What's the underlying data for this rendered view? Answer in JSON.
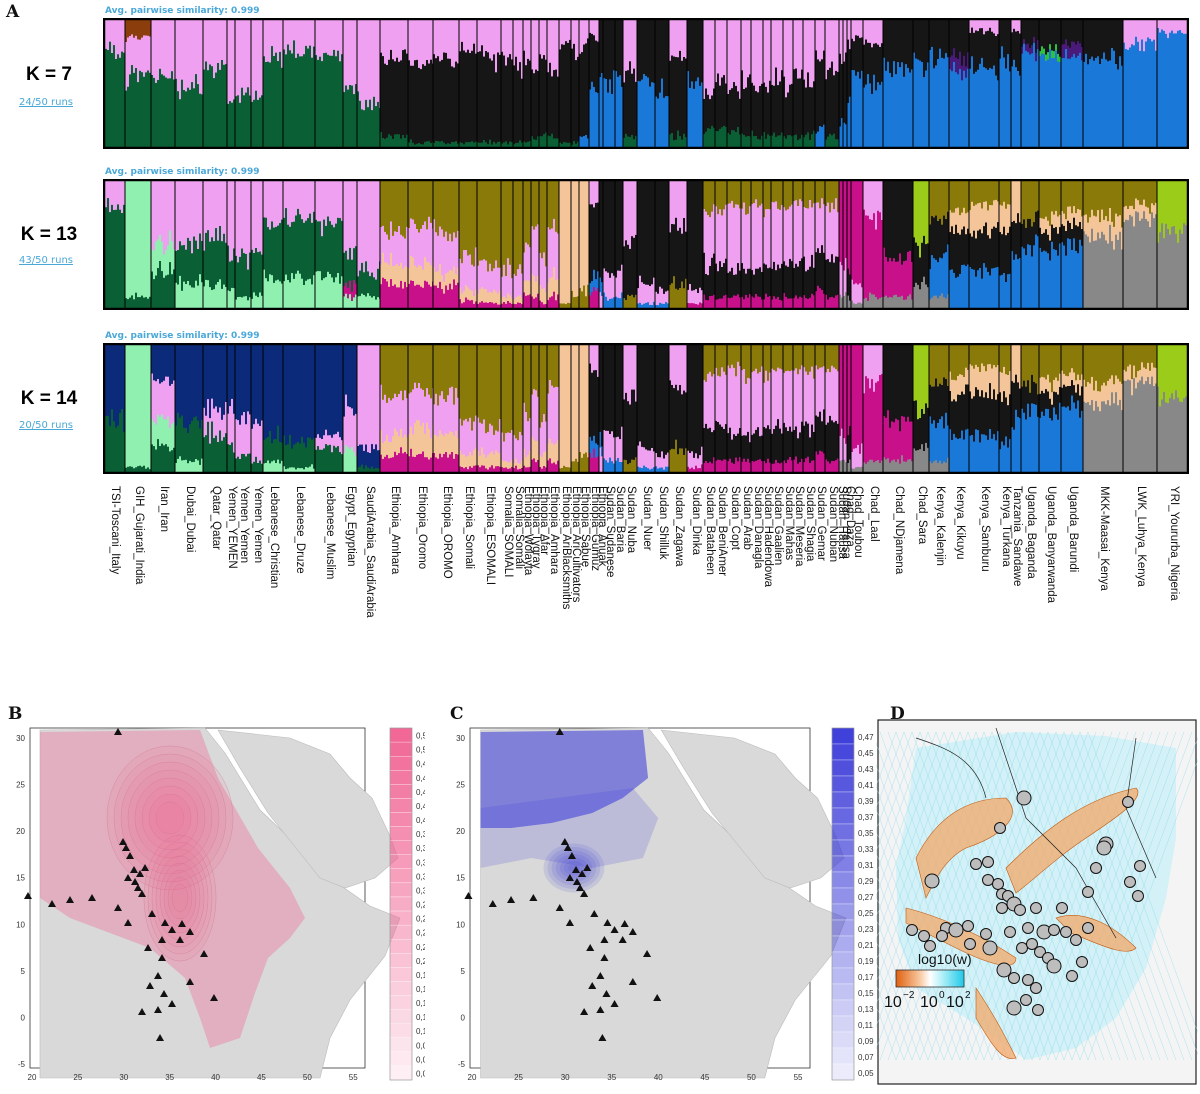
{
  "panels": {
    "a": "A",
    "b": "B",
    "c": "C",
    "d": "D"
  },
  "structure_rows": [
    {
      "k_label": "K = 7",
      "runs": "24/50 runs",
      "similarity": "Avg. pairwise similarity: 0.999",
      "k": 7
    },
    {
      "k_label": "K = 13",
      "runs": "43/50 runs",
      "similarity": "Avg. pairwise similarity: 0.999",
      "k": 13
    },
    {
      "k_label": "K = 14",
      "runs": "20/50 runs",
      "similarity": "Avg. pairwise similarity: 0.999",
      "k": 14
    }
  ],
  "populations": [
    "TSI-Toscani_Italy",
    "GIH_Gujarati_India",
    "Iran_Iran",
    "Dubai_Dubai",
    "Qatar_Qatar",
    "Yemen_YEMEN",
    "Yemen_Yemen",
    "Yemen_Yemen",
    "Lebanese_Christian",
    "Lebanese_Druze",
    "Lebanese_Muslim",
    "Egypt_Egyptian",
    "SaudiArabia_SaudiArabia",
    "Ethiopia_Amhara",
    "Ethiopia_Oromo",
    "Ethiopia_OROMO",
    "Ethiopia_Somali",
    "Ethiopia_ESOMALI",
    "Somalia_SOMALI",
    "Somalia_Somali",
    "Ethiopia_Wolayta",
    "Ethiopia_Tygray",
    "Ethiopia_Afar",
    "Ethiopia_Amhara",
    "Ethiopia_AriBlacksmiths",
    "Ethiopia_AriCultivators",
    "Ethiopia_Sabue",
    "Ethiopia_Gumuz",
    "Ethiopia_Anuak",
    "Sudan_Sudanese",
    "Sudan_Baria",
    "Sudan_Nuba",
    "Sudan_Nuer",
    "Sudan_Shilluk",
    "Sudan_Zagawa",
    "Sudan_Dinka",
    "Sudan_Bataheen",
    "Sudan_BeniAmer",
    "Sudan_Copt",
    "Sudan_Arab",
    "Sudan_Danagla",
    "Sudan_Hadendowa",
    "Sudan_Gaalien",
    "Sudan_Mahas",
    "Sudan_Meseria",
    "Sudan_Shagia",
    "Sudan_Gemar",
    "Sudan_Nubian",
    "Sudan_Hausa",
    "Sudan_Hausa",
    "Chad_Daza",
    "Chad_Toubou",
    "Chad_Laal",
    "Chad_NDjamena",
    "Chad_Sara",
    "Kenya_Kalenjin",
    "Kenya_Kikuyu",
    "Kenya_Samburu",
    "Kenya_Turkana",
    "Tanzania_Sandawe",
    "Uganda_Baganda",
    "Uganda_Banyarwanda",
    "Uganda_Barundi",
    "MKK-Maasai_Kenya",
    "LWK_Luhya_Kenya",
    "YRI_Yoururba_Nigeria"
  ],
  "map_b": {
    "x_ticks": [
      "20",
      "25",
      "30",
      "35",
      "40",
      "45",
      "50",
      "55"
    ],
    "y_ticks": [
      "30",
      "25",
      "20",
      "15",
      "10",
      "5",
      "0",
      "-5"
    ],
    "legend": [
      "0,53",
      "0,51",
      "0,49",
      "0,47",
      "0,45",
      "0,43",
      "0,41",
      "0,39",
      "0,37",
      "0,35",
      "0,33",
      "0,31",
      "0,29",
      "0,27",
      "0,25",
      "0,23",
      "0,21",
      "0,19",
      "0,17",
      "0,15",
      "0,13",
      "0,11",
      "0,09",
      "0,07",
      "0,05"
    ],
    "color": "#f06090"
  },
  "map_c": {
    "x_ticks": [
      "20",
      "25",
      "30",
      "35",
      "40",
      "45",
      "50",
      "55"
    ],
    "y_ticks": [
      "30",
      "25",
      "20",
      "15",
      "10",
      "5",
      "0",
      "-5"
    ],
    "legend": [
      "0,47",
      "0,45",
      "0,43",
      "0,41",
      "0,39",
      "0,37",
      "0,35",
      "0,33",
      "0,31",
      "0,29",
      "0,27",
      "0,25",
      "0,23",
      "0,21",
      "0,19",
      "0,17",
      "0,15",
      "0,13",
      "0,11",
      "0,09",
      "0,07",
      "0,05"
    ],
    "color": "#3636d8"
  },
  "map_d": {
    "legend_title": "log10(w)",
    "legend_ticks": [
      "10",
      "10",
      "10"
    ],
    "legend_exps": [
      "−2",
      "0",
      "2"
    ]
  },
  "colors": {
    "green": "#0a5f35",
    "pink": "#f0a0f0",
    "black": "#161616",
    "blue": "#1a78d8",
    "brown": "#8b3e0c",
    "olive": "#8a7a0a",
    "peach": "#f5c59a",
    "magenta": "#c8108a",
    "navy": "#0c2a7a",
    "mint": "#90f0b0",
    "lime": "#9ccc1a",
    "grey": "#888888",
    "purple": "#4a1a7a",
    "bright_green": "#30c040"
  }
}
